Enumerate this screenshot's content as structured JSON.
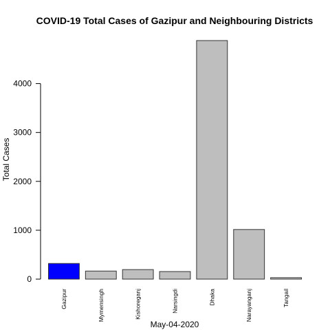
{
  "chart_data": {
    "type": "bar",
    "title": "COVID-19 Total Cases of Gazipur and Neighbouring Districts",
    "xlabel": "May-04-2020",
    "ylabel": "Total Cases",
    "categories": [
      "Gazipur",
      "Mymensingh",
      "Kishoreganj",
      "Narsingdi",
      "Dhaka",
      "Narayanganj",
      "Tangail"
    ],
    "values": [
      320,
      165,
      195,
      155,
      4880,
      1015,
      30
    ],
    "ylim": [
      0,
      4880
    ],
    "yticks": [
      0,
      1000,
      2000,
      3000,
      4000
    ],
    "highlight_color": "#0000ff",
    "bar_color": "#bebebe",
    "highlight_index": 0,
    "grid": false,
    "legend": "none"
  }
}
